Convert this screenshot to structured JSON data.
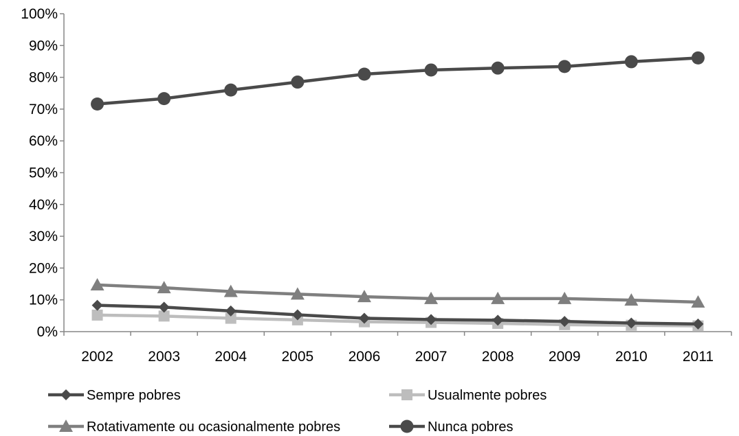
{
  "chart_data": {
    "type": "line",
    "title": "",
    "xlabel": "",
    "ylabel": "",
    "ylim": [
      0,
      100
    ],
    "y_unit": "%",
    "y_ticks": [
      "0%",
      "10%",
      "20%",
      "30%",
      "40%",
      "50%",
      "60%",
      "70%",
      "80%",
      "90%",
      "100%"
    ],
    "categories": [
      "2002",
      "2003",
      "2004",
      "2005",
      "2006",
      "2007",
      "2008",
      "2009",
      "2010",
      "2011"
    ],
    "grid": false,
    "legend_position": "bottom",
    "series": [
      {
        "name": "Sempre pobres",
        "marker": "diamond",
        "color": "#4a4a4a",
        "values": [
          8.3,
          7.7,
          6.5,
          5.3,
          4.2,
          3.8,
          3.6,
          3.2,
          2.7,
          2.4
        ]
      },
      {
        "name": "Usualmente pobres",
        "marker": "square",
        "color": "#bdbdbd",
        "values": [
          5.2,
          4.9,
          4.2,
          3.7,
          3.1,
          2.9,
          2.6,
          2.2,
          2.0,
          1.8
        ]
      },
      {
        "name": "Rotativamente ou ocasionalmente pobres",
        "marker": "triangle",
        "color": "#7f7f7f",
        "values": [
          14.7,
          13.8,
          12.6,
          11.8,
          11.0,
          10.4,
          10.4,
          10.4,
          9.9,
          9.3
        ]
      },
      {
        "name": "Nunca pobres",
        "marker": "circle",
        "color": "#4a4a4a",
        "values": [
          71.6,
          73.3,
          76.0,
          78.5,
          81.0,
          82.3,
          82.9,
          83.4,
          84.9,
          86.1
        ]
      }
    ]
  }
}
